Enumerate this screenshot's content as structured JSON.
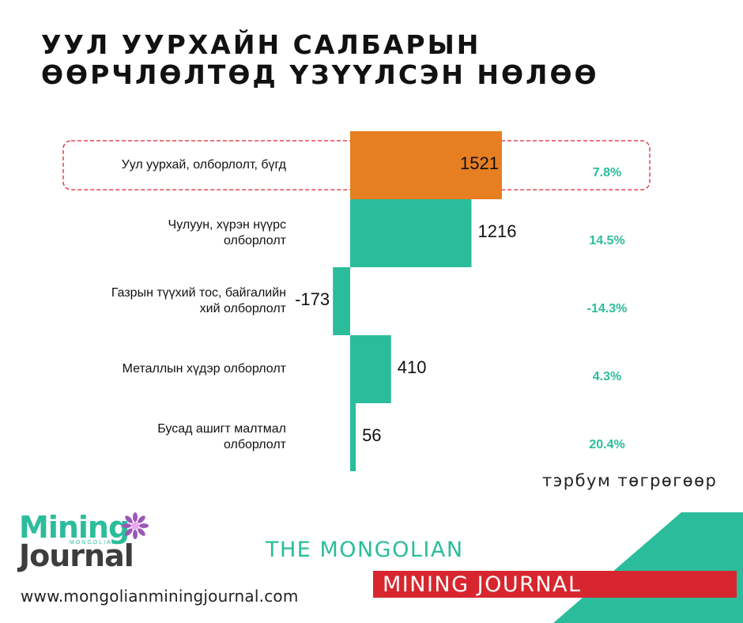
{
  "title": {
    "line1": "УУЛ УУРХАЙН САЛБАРЫН",
    "line2": "ӨӨРЧЛӨЛТӨД ҮЗҮҮЛСЭН НӨЛӨӨ"
  },
  "chart_data": {
    "type": "bar",
    "orientation": "horizontal",
    "categories": [
      [
        "Уул уурхай, олборлолт, бүгд"
      ],
      [
        "Чулуун, хүрэн нүүрс",
        "олборлолт"
      ],
      [
        "Газрын түүхий тос, байгалийн",
        "хий олборлолт"
      ],
      [
        "Металлын хүдэр олборлолт"
      ],
      [
        "Бусад ашигт малтмал",
        "олборлолт"
      ]
    ],
    "values": [
      1521,
      1216,
      -173,
      410,
      56
    ],
    "value_labels": [
      "1521",
      "1216",
      "-173",
      "410",
      "56"
    ],
    "growth_labels": [
      "7.8%",
      "14.5%",
      "-14.3%",
      "4.3%",
      "20.4%"
    ],
    "highlighted_category_index": 0,
    "unit": "тэрбум төгрөгөөр"
  },
  "colors": {
    "highlight_bar": "#e67e22",
    "bar": "#2bbd9b",
    "highlight_box": "#d7262e",
    "percent_text": "#2bbd9b"
  },
  "branding": {
    "logo_word1": "Mining",
    "logo_word2": "Journal",
    "logo_sub": "MONGOLIAN",
    "website": "www.mongolianminingjournal.com",
    "name_line1": "THE MONGOLIAN",
    "name_line2": "MINING JOURNAL"
  }
}
